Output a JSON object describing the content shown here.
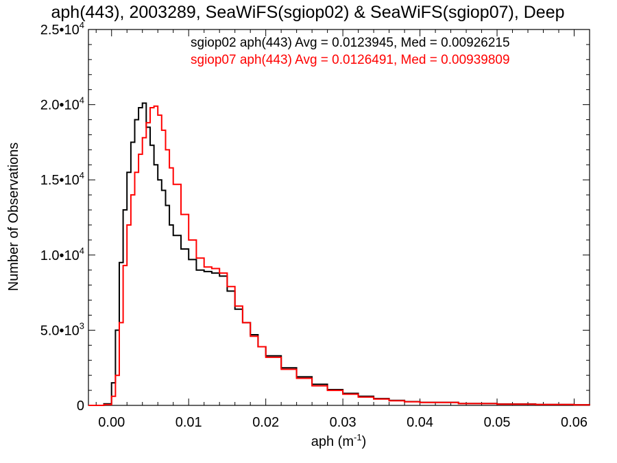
{
  "chart_data": {
    "type": "line",
    "title": "aph(443), 2003289, SeaWiFS(sgiop02) & SeaWiFS(sgiop07), Deep",
    "xlabel": "aph (m",
    "xlabel_exponent": "-1",
    "xlabel_suffix": ")",
    "ylabel": "Number of Observations",
    "xlim": [
      -0.003,
      0.062
    ],
    "ylim": [
      0,
      25000
    ],
    "grid": false,
    "legend_position": "top-right",
    "x_ticks": [
      {
        "value": 0.0,
        "label": "0.00"
      },
      {
        "value": 0.01,
        "label": "0.01"
      },
      {
        "value": 0.02,
        "label": "0.02"
      },
      {
        "value": 0.03,
        "label": "0.03"
      },
      {
        "value": 0.04,
        "label": "0.04"
      },
      {
        "value": 0.05,
        "label": "0.05"
      },
      {
        "value": 0.06,
        "label": "0.06"
      }
    ],
    "y_ticks": [
      {
        "value": 0,
        "mantissa": "0",
        "exponent": ""
      },
      {
        "value": 5000,
        "mantissa": "5.0•10",
        "exponent": "3"
      },
      {
        "value": 10000,
        "mantissa": "1.0•10",
        "exponent": "4"
      },
      {
        "value": 15000,
        "mantissa": "1.5•10",
        "exponent": "4"
      },
      {
        "value": 20000,
        "mantissa": "2.0•10",
        "exponent": "4"
      },
      {
        "value": 25000,
        "mantissa": "2.5•10",
        "exponent": "4"
      }
    ],
    "series": [
      {
        "legend": "sgiop02 aph(443) Avg = 0.0123945, Med = 0.00926215",
        "color": "#000000",
        "x": [
          -0.003,
          -0.001,
          0.0,
          0.0005,
          0.001,
          0.0015,
          0.002,
          0.0025,
          0.003,
          0.0035,
          0.004,
          0.0045,
          0.005,
          0.0055,
          0.006,
          0.0065,
          0.007,
          0.0075,
          0.008,
          0.009,
          0.01,
          0.011,
          0.012,
          0.013,
          0.014,
          0.015,
          0.016,
          0.017,
          0.018,
          0.019,
          0.02,
          0.022,
          0.024,
          0.026,
          0.028,
          0.03,
          0.032,
          0.034,
          0.036,
          0.038,
          0.04,
          0.045,
          0.05,
          0.055,
          0.06,
          0.062
        ],
        "y": [
          0,
          100,
          1500,
          5000,
          9500,
          13000,
          15500,
          17500,
          19000,
          19800,
          20100,
          18500,
          17300,
          16000,
          15000,
          14300,
          13300,
          12000,
          11300,
          10400,
          9700,
          9000,
          8900,
          8800,
          8600,
          7600,
          6400,
          5500,
          4700,
          3900,
          3300,
          2500,
          1900,
          1400,
          1050,
          800,
          600,
          450,
          330,
          250,
          200,
          130,
          90,
          60,
          40,
          30
        ]
      },
      {
        "legend": "sgiop07 aph(443) Avg = 0.0126491, Med = 0.00939809",
        "color": "#ff0000",
        "x": [
          -0.003,
          -0.001,
          0.0,
          0.0005,
          0.001,
          0.0015,
          0.002,
          0.0025,
          0.003,
          0.0035,
          0.004,
          0.0045,
          0.005,
          0.0055,
          0.006,
          0.0065,
          0.007,
          0.0075,
          0.008,
          0.009,
          0.01,
          0.011,
          0.012,
          0.013,
          0.014,
          0.015,
          0.016,
          0.017,
          0.018,
          0.019,
          0.02,
          0.022,
          0.024,
          0.026,
          0.028,
          0.03,
          0.032,
          0.034,
          0.036,
          0.038,
          0.04,
          0.045,
          0.05,
          0.055,
          0.06,
          0.062
        ],
        "y": [
          0,
          50,
          600,
          2000,
          5500,
          9300,
          12000,
          14000,
          15500,
          16700,
          17800,
          18800,
          19800,
          19900,
          19300,
          18300,
          17000,
          15800,
          14700,
          12700,
          11000,
          9800,
          9200,
          9100,
          8800,
          7900,
          6600,
          5500,
          4600,
          3900,
          3200,
          2400,
          1800,
          1300,
          1000,
          750,
          550,
          420,
          310,
          240,
          190,
          120,
          80,
          55,
          35,
          25
        ]
      }
    ]
  }
}
